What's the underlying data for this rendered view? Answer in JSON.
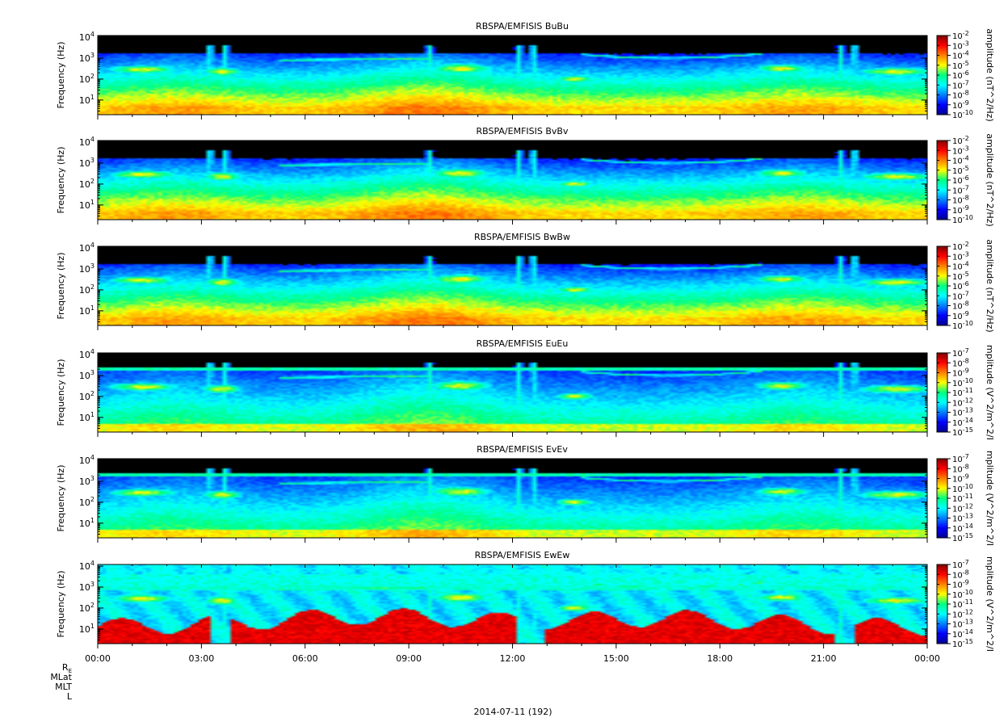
{
  "chart_data": [
    {
      "type": "heatmap",
      "title": "RBSPA/EMFISIS  BuBu",
      "ylabel": "Frequency (Hz)",
      "yscale": "log",
      "ylim": [
        2,
        12000
      ],
      "yticks": [
        {
          "base": "10",
          "exp": "1"
        },
        {
          "base": "10",
          "exp": "2"
        },
        {
          "base": "10",
          "exp": "3"
        },
        {
          "base": "10",
          "exp": "4"
        }
      ],
      "colorbar": {
        "label": "amplitude (nT^2/Hz)",
        "range": [
          -10,
          -2
        ],
        "ticks": [
          {
            "base": "10",
            "exp": "-2"
          },
          {
            "base": "10",
            "exp": "-3"
          },
          {
            "base": "10",
            "exp": "-4"
          },
          {
            "base": "10",
            "exp": "-5"
          },
          {
            "base": "10",
            "exp": "-6"
          },
          {
            "base": "10",
            "exp": "-7"
          },
          {
            "base": "10",
            "exp": "-8"
          },
          {
            "base": "10",
            "exp": "-9"
          },
          {
            "base": "10",
            "exp": "-10"
          }
        ]
      }
    },
    {
      "type": "heatmap",
      "title": "RBSPA/EMFISIS  BvBv",
      "ylabel": "Frequency (Hz)",
      "yscale": "log",
      "ylim": [
        2,
        12000
      ],
      "yticks": [
        {
          "base": "10",
          "exp": "1"
        },
        {
          "base": "10",
          "exp": "2"
        },
        {
          "base": "10",
          "exp": "3"
        },
        {
          "base": "10",
          "exp": "4"
        }
      ],
      "colorbar": {
        "label": "amplitude (nT^2/Hz)",
        "range": [
          -10,
          -2
        ],
        "ticks": [
          {
            "base": "10",
            "exp": "-2"
          },
          {
            "base": "10",
            "exp": "-3"
          },
          {
            "base": "10",
            "exp": "-4"
          },
          {
            "base": "10",
            "exp": "-5"
          },
          {
            "base": "10",
            "exp": "-6"
          },
          {
            "base": "10",
            "exp": "-7"
          },
          {
            "base": "10",
            "exp": "-8"
          },
          {
            "base": "10",
            "exp": "-9"
          },
          {
            "base": "10",
            "exp": "-10"
          }
        ]
      }
    },
    {
      "type": "heatmap",
      "title": "RBSPA/EMFISIS  BwBw",
      "ylabel": "Frequency (Hz)",
      "yscale": "log",
      "ylim": [
        2,
        12000
      ],
      "yticks": [
        {
          "base": "10",
          "exp": "1"
        },
        {
          "base": "10",
          "exp": "2"
        },
        {
          "base": "10",
          "exp": "3"
        },
        {
          "base": "10",
          "exp": "4"
        }
      ],
      "colorbar": {
        "label": "amplitude (nT^2/Hz)",
        "range": [
          -10,
          -2
        ],
        "ticks": [
          {
            "base": "10",
            "exp": "-2"
          },
          {
            "base": "10",
            "exp": "-3"
          },
          {
            "base": "10",
            "exp": "-4"
          },
          {
            "base": "10",
            "exp": "-5"
          },
          {
            "base": "10",
            "exp": "-6"
          },
          {
            "base": "10",
            "exp": "-7"
          },
          {
            "base": "10",
            "exp": "-8"
          },
          {
            "base": "10",
            "exp": "-9"
          },
          {
            "base": "10",
            "exp": "-10"
          }
        ]
      }
    },
    {
      "type": "heatmap",
      "title": "RBSPA/EMFISIS  EuEu",
      "ylabel": "Frequency (Hz)",
      "yscale": "log",
      "ylim": [
        2,
        12000
      ],
      "yticks": [
        {
          "base": "10",
          "exp": "1"
        },
        {
          "base": "10",
          "exp": "2"
        },
        {
          "base": "10",
          "exp": "3"
        },
        {
          "base": "10",
          "exp": "4"
        }
      ],
      "colorbar": {
        "label": "mplitude (V^2/m^2/I",
        "range": [
          -15,
          -7
        ],
        "ticks": [
          {
            "base": "10",
            "exp": "-7"
          },
          {
            "base": "10",
            "exp": "-8"
          },
          {
            "base": "10",
            "exp": "-9"
          },
          {
            "base": "10",
            "exp": "-10"
          },
          {
            "base": "10",
            "exp": "-11"
          },
          {
            "base": "10",
            "exp": "-12"
          },
          {
            "base": "10",
            "exp": "-13"
          },
          {
            "base": "10",
            "exp": "-14"
          },
          {
            "base": "10",
            "exp": "-15"
          }
        ]
      }
    },
    {
      "type": "heatmap",
      "title": "RBSPA/EMFISIS  EvEv",
      "ylabel": "Frequency (Hz)",
      "yscale": "log",
      "ylim": [
        2,
        12000
      ],
      "yticks": [
        {
          "base": "10",
          "exp": "1"
        },
        {
          "base": "10",
          "exp": "2"
        },
        {
          "base": "10",
          "exp": "3"
        },
        {
          "base": "10",
          "exp": "4"
        }
      ],
      "colorbar": {
        "label": "mplitude (V^2/m^2/I",
        "range": [
          -15,
          -7
        ],
        "ticks": [
          {
            "base": "10",
            "exp": "-7"
          },
          {
            "base": "10",
            "exp": "-8"
          },
          {
            "base": "10",
            "exp": "-9"
          },
          {
            "base": "10",
            "exp": "-10"
          },
          {
            "base": "10",
            "exp": "-11"
          },
          {
            "base": "10",
            "exp": "-12"
          },
          {
            "base": "10",
            "exp": "-13"
          },
          {
            "base": "10",
            "exp": "-14"
          },
          {
            "base": "10",
            "exp": "-15"
          }
        ]
      }
    },
    {
      "type": "heatmap",
      "title": "RBSPA/EMFISIS  EwEw",
      "ylabel": "Frequency (Hz)",
      "yscale": "log",
      "ylim": [
        2,
        12000
      ],
      "yticks": [
        {
          "base": "10",
          "exp": "1"
        },
        {
          "base": "10",
          "exp": "2"
        },
        {
          "base": "10",
          "exp": "3"
        },
        {
          "base": "10",
          "exp": "4"
        }
      ],
      "colorbar": {
        "label": "mplitude (V^2/m^2/I",
        "range": [
          -15,
          -7
        ],
        "ticks": [
          {
            "base": "10",
            "exp": "-7"
          },
          {
            "base": "10",
            "exp": "-8"
          },
          {
            "base": "10",
            "exp": "-9"
          },
          {
            "base": "10",
            "exp": "-10"
          },
          {
            "base": "10",
            "exp": "-11"
          },
          {
            "base": "10",
            "exp": "-12"
          },
          {
            "base": "10",
            "exp": "-13"
          },
          {
            "base": "10",
            "exp": "-14"
          },
          {
            "base": "10",
            "exp": "-15"
          }
        ]
      }
    }
  ],
  "x_axis": {
    "range_hours": [
      0,
      24
    ],
    "ticks": [
      "00:00",
      "03:00",
      "06:00",
      "09:00",
      "12:00",
      "15:00",
      "18:00",
      "21:00",
      "00:00"
    ],
    "ephemeris_rows": [
      {
        "main": "R",
        "sub": "E"
      },
      {
        "main": "MLat",
        "sub": ""
      },
      {
        "main": "MLT",
        "sub": ""
      },
      {
        "main": "L",
        "sub": ""
      }
    ],
    "date_label": "2014-07-11 (192)"
  }
}
